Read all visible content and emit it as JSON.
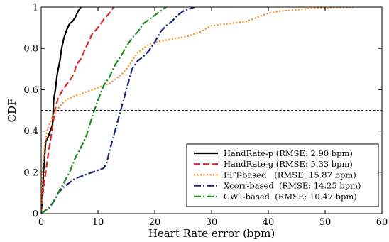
{
  "chart_data": {
    "type": "line",
    "xlabel": "Heart Rate error (bpm)",
    "ylabel": "CDF",
    "xlim": [
      0,
      60
    ],
    "ylim": [
      0,
      1
    ],
    "xticks": [
      0,
      10,
      20,
      30,
      40,
      50,
      60
    ],
    "yticks": [
      0,
      0.2,
      0.4,
      0.6,
      0.8,
      1
    ],
    "x_tick_labels": [
      "0",
      "10",
      "20",
      "30",
      "40",
      "50",
      "60"
    ],
    "y_tick_labels": [
      "0",
      "0.2",
      "0.4",
      "0.6",
      "0.8",
      "1"
    ],
    "legend_position": "bottom-right",
    "reference_line": {
      "y": 0.5,
      "style": "dashed",
      "color": "#000000"
    },
    "series": [
      {
        "name": "HandRate-p (RMSE: 2.90 bpm)",
        "color": "#000000",
        "dash": "solid",
        "x": [
          0,
          0.2,
          0.4,
          0.8,
          1.2,
          1.6,
          2.0,
          2.2,
          2.5,
          2.8,
          3.0,
          3.3,
          3.6,
          4.0,
          4.5,
          5.0,
          5.5,
          6.0,
          6.5,
          7.0
        ],
        "y": [
          0,
          0.07,
          0.2,
          0.35,
          0.37,
          0.4,
          0.43,
          0.55,
          0.6,
          0.67,
          0.7,
          0.74,
          0.8,
          0.85,
          0.89,
          0.92,
          0.93,
          0.95,
          0.98,
          1.0
        ]
      },
      {
        "name": "HandRate-g (RMSE: 5.33 bpm)",
        "color": "#d62728",
        "dash": "dashed",
        "x": [
          0,
          0.3,
          0.8,
          1.2,
          1.6,
          2.0,
          2.4,
          3.0,
          3.8,
          4.6,
          5.2,
          5.8,
          6.2,
          7.0,
          7.8,
          8.3,
          9.0,
          10.0,
          11.0,
          12.0,
          12.8
        ],
        "y": [
          0,
          0.1,
          0.2,
          0.28,
          0.35,
          0.42,
          0.5,
          0.56,
          0.6,
          0.63,
          0.65,
          0.68,
          0.72,
          0.75,
          0.8,
          0.83,
          0.87,
          0.9,
          0.94,
          0.97,
          1.0
        ]
      },
      {
        "name": "FFT-based   (RMSE: 15.87 bpm)",
        "color": "#ff8c1a",
        "dash": "dotted",
        "x": [
          0,
          0.2,
          0.5,
          1.0,
          2.0,
          3.0,
          4.0,
          5.0,
          6.0,
          7.0,
          8.0,
          9.0,
          10.0,
          11.0,
          12.0,
          13.0,
          14.0,
          15.0,
          16.0,
          17.0,
          18.0,
          19.0,
          20.0,
          22.0,
          24.0,
          26.0,
          28.0,
          30.0,
          33.0,
          36.0,
          38.0,
          40.0,
          42.0,
          44.0,
          46.0,
          48.0,
          50.0,
          52.0,
          55.0
        ],
        "y": [
          0,
          0.2,
          0.3,
          0.4,
          0.47,
          0.51,
          0.54,
          0.56,
          0.57,
          0.58,
          0.59,
          0.6,
          0.61,
          0.62,
          0.63,
          0.65,
          0.67,
          0.7,
          0.74,
          0.78,
          0.8,
          0.82,
          0.83,
          0.84,
          0.85,
          0.86,
          0.88,
          0.91,
          0.92,
          0.93,
          0.95,
          0.97,
          0.98,
          0.985,
          0.99,
          0.995,
          0.997,
          0.999,
          1.0
        ]
      },
      {
        "name": "Xcorr-based  (RMSE: 14.25 bpm)",
        "color": "#1a237e",
        "dash": "dashdot",
        "x": [
          0,
          0.5,
          1.0,
          1.5,
          2.0,
          2.5,
          3.0,
          4.0,
          5.0,
          6.0,
          7.0,
          8.0,
          9.0,
          10.0,
          11.0,
          11.5,
          12.0,
          12.5,
          13.0,
          13.5,
          14.0,
          14.5,
          15.0,
          15.5,
          16.0,
          17.0,
          18.0,
          19.0,
          20.0,
          21.0,
          22.0,
          23.0,
          24.0,
          25.0,
          26.0,
          27.0
        ],
        "y": [
          0,
          0.01,
          0.02,
          0.03,
          0.05,
          0.07,
          0.1,
          0.13,
          0.15,
          0.17,
          0.18,
          0.19,
          0.2,
          0.21,
          0.22,
          0.24,
          0.3,
          0.35,
          0.4,
          0.45,
          0.5,
          0.55,
          0.6,
          0.65,
          0.7,
          0.74,
          0.76,
          0.79,
          0.83,
          0.88,
          0.91,
          0.93,
          0.96,
          0.98,
          0.99,
          1.0
        ]
      },
      {
        "name": "CWT-based  (RMSE: 10.47 bpm)",
        "color": "#1a8a1a",
        "dash": "dashdot",
        "x": [
          0,
          0.5,
          1.0,
          2.0,
          3.0,
          4.0,
          5.0,
          6.0,
          7.0,
          8.0,
          9.0,
          10.0,
          11.0,
          12.0,
          13.0,
          14.0,
          15.0,
          16.0,
          17.0,
          18.0,
          19.0,
          20.0,
          21.0,
          22.0
        ],
        "y": [
          0,
          0.01,
          0.02,
          0.05,
          0.1,
          0.15,
          0.2,
          0.27,
          0.32,
          0.38,
          0.47,
          0.55,
          0.62,
          0.66,
          0.72,
          0.76,
          0.81,
          0.85,
          0.88,
          0.92,
          0.94,
          0.96,
          0.98,
          1.0
        ]
      }
    ]
  }
}
